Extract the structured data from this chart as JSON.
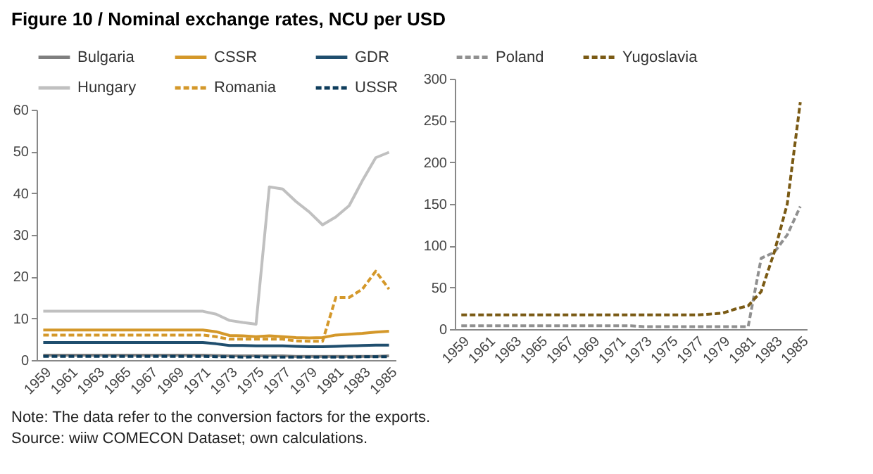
{
  "chart_data": [
    {
      "type": "line",
      "title": "Figure 10 / Nominal exchange rates, NCU per USD",
      "categories": [
        "1959",
        null,
        "1961",
        null,
        "1963",
        null,
        "1965",
        null,
        "1967",
        null,
        "1969",
        null,
        "1971",
        null,
        "1973",
        null,
        "1975",
        null,
        "1977",
        null,
        "1979",
        null,
        "1981",
        null,
        "1983",
        null,
        "1985"
      ],
      "ylim": [
        0,
        60
      ],
      "yticks": [
        0,
        10,
        20,
        30,
        40,
        50,
        60
      ],
      "grid": false,
      "legend": "top",
      "marker": "none",
      "series": [
        {
          "name": "Bulgaria",
          "color": "#7f7f7f",
          "line_style": "solid",
          "values": [
            1.2,
            1.2,
            1.2,
            1.2,
            1.2,
            1.2,
            1.2,
            1.2,
            1.2,
            1.2,
            1.2,
            1.2,
            1.2,
            1.1,
            1.0,
            1.0,
            1.0,
            1.0,
            1.0,
            0.9,
            0.9,
            0.9,
            0.9,
            0.9,
            0.9,
            0.9,
            1.0
          ]
        },
        {
          "name": "CSSR",
          "color": "#d4982a",
          "line_style": "solid",
          "values": [
            7.2,
            7.2,
            7.2,
            7.2,
            7.2,
            7.2,
            7.2,
            7.2,
            7.2,
            7.2,
            7.2,
            7.2,
            7.2,
            6.8,
            5.9,
            5.8,
            5.6,
            5.8,
            5.6,
            5.4,
            5.3,
            5.4,
            6.0,
            6.2,
            6.4,
            6.7,
            6.9
          ]
        },
        {
          "name": "GDR",
          "color": "#1f4e6e",
          "line_style": "solid",
          "values": [
            4.2,
            4.2,
            4.2,
            4.2,
            4.2,
            4.2,
            4.2,
            4.2,
            4.2,
            4.2,
            4.2,
            4.2,
            4.2,
            3.9,
            3.5,
            3.5,
            3.4,
            3.4,
            3.4,
            3.3,
            3.2,
            3.2,
            3.3,
            3.4,
            3.5,
            3.6,
            3.6
          ]
        },
        {
          "name": "Hungary",
          "color": "#c0c0c0",
          "line_style": "solid",
          "values": [
            11.7,
            11.7,
            11.7,
            11.7,
            11.7,
            11.7,
            11.7,
            11.7,
            11.7,
            11.7,
            11.7,
            11.7,
            11.7,
            11.0,
            9.5,
            9.0,
            8.6,
            41.5,
            41.0,
            38.0,
            35.5,
            32.4,
            34.3,
            37.0,
            43.0,
            48.5,
            49.8
          ]
        },
        {
          "name": "Romania",
          "color": "#d4982a",
          "line_style": "dashed",
          "values": [
            6.0,
            6.0,
            6.0,
            6.0,
            6.0,
            6.0,
            6.0,
            6.0,
            6.0,
            6.0,
            6.0,
            6.0,
            6.0,
            5.6,
            5.0,
            5.0,
            5.0,
            5.0,
            5.0,
            4.6,
            4.5,
            4.5,
            15.0,
            15.0,
            17.0,
            21.3,
            17.0
          ]
        },
        {
          "name": "USSR",
          "color": "#0e3d5c",
          "line_style": "dashed",
          "values": [
            0.9,
            0.9,
            0.9,
            0.9,
            0.9,
            0.9,
            0.9,
            0.9,
            0.9,
            0.9,
            0.9,
            0.9,
            0.9,
            0.8,
            0.8,
            0.7,
            0.8,
            0.7,
            0.7,
            0.7,
            0.7,
            0.7,
            0.7,
            0.7,
            0.8,
            0.8,
            0.8
          ]
        }
      ],
      "annotations": [
        "Note: The data refer to the conversion factors for the exports.",
        "Source: wiiw COMECON Dataset; own calculations."
      ]
    },
    {
      "type": "line",
      "categories": [
        "1959",
        null,
        "1961",
        null,
        "1963",
        null,
        "1965",
        null,
        "1967",
        null,
        "1969",
        null,
        "1971",
        null,
        "1973",
        null,
        "1975",
        null,
        "1977",
        null,
        "1979",
        null,
        "1981",
        null,
        "1983",
        null,
        "1985"
      ],
      "ylim": [
        0,
        300
      ],
      "yticks": [
        0,
        50,
        100,
        150,
        200,
        250,
        300
      ],
      "grid": false,
      "legend": "top",
      "marker": "none",
      "series": [
        {
          "name": "Poland",
          "color": "#909090",
          "line_style": "dashed",
          "values": [
            4,
            4,
            4,
            4,
            4,
            4,
            4,
            4,
            4,
            4,
            4,
            4,
            4,
            4,
            3,
            3,
            3,
            3,
            3,
            3,
            3,
            3,
            3,
            85,
            92,
            113,
            147
          ]
        },
        {
          "name": "Yugoslavia",
          "color": "#7a5a14",
          "line_style": "dashed",
          "values": [
            17,
            17,
            17,
            17,
            17,
            17,
            17,
            17,
            17,
            17,
            17,
            17,
            17,
            17,
            17,
            17,
            17,
            17,
            17,
            18,
            19,
            24,
            28,
            45,
            92,
            150,
            272
          ]
        }
      ]
    }
  ]
}
